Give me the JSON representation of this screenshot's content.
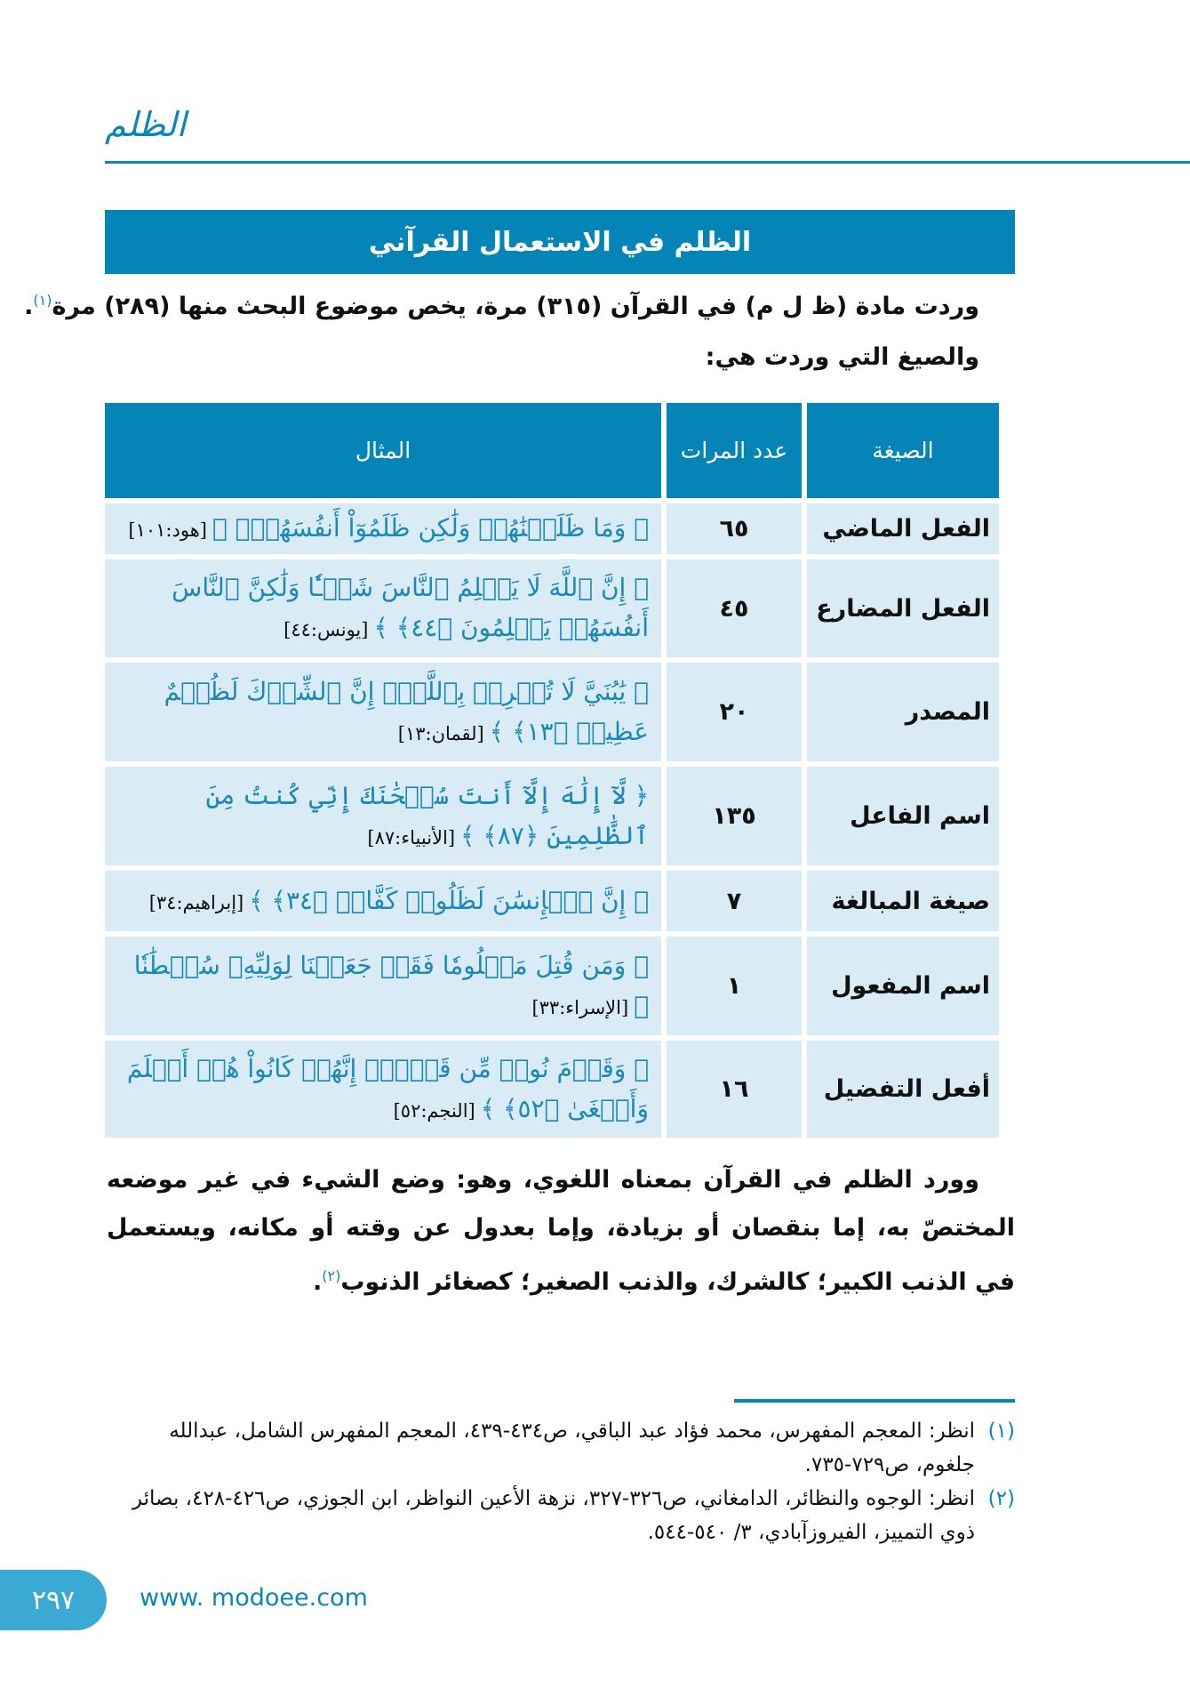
{
  "header": {
    "chapter_title": "الظلم",
    "accent_color": "#0584b8"
  },
  "section": {
    "title": "الظلم في الاستعمال القرآني"
  },
  "intro": {
    "line1": "وردت مادة (ظ ل م) في القرآن (٣١٥) مرة، يخص موضوع البحث منها (٢٨٩) مرة",
    "line1_footnote": "(١)",
    "line1_end": ".",
    "line2": "والصيغ التي وردت هي:"
  },
  "table": {
    "headers": {
      "form": "الصيغة",
      "count": "عدد المرات",
      "example": "المثال"
    },
    "rows": [
      {
        "form": "الفعل الماضي",
        "count": "٦٥",
        "verse": "﴿ وَمَا ظَلَمۡنَٰهُمۡ وَلَٰكِن ظَلَمُوٓاْ أَنفُسَهُمۡۖ ﴾",
        "ref": "[هود:١٠١]"
      },
      {
        "form": "الفعل المضارع",
        "count": "٤٥",
        "verse": "﴿ إِنَّ ٱللَّهَ لَا يَظۡلِمُ ٱلنَّاسَ شَيۡـٔٗا وَلَٰكِنَّ ٱلنَّاسَ أَنفُسَهُمۡ يَظۡلِمُونَ ﴿٤٤﴾ ﴾",
        "ref": "[يونس:٤٤]"
      },
      {
        "form": "المصدر",
        "count": "٢٠",
        "verse": "﴿ يَٰبُنَيَّ لَا تُشۡرِكۡ بِٱللَّهِۖ إِنَّ ٱلشِّرۡكَ لَظُلۡمٌ عَظِيمٞ ﴿١٣﴾ ﴾",
        "ref": "[لقمان:١٣]"
      },
      {
        "form": "اسم الفاعل",
        "count": "١٣٥",
        "verse": "﴿ لَّآ إِلَٰهَ إِلَّآ أَنتَ سُبۡحَٰنَكَ إِنِّي كُنتُ مِنَ ٱلظَّٰلِمِينَ ﴿٨٧﴾ ﴾",
        "ref": "[الأنبياء:٨٧]"
      },
      {
        "form": "صيغة المبالغة",
        "count": "٧",
        "verse": "﴿ إِنَّ ٱلۡإِنسَٰنَ لَظَلُومٞ كَفَّارٞ ﴿٣٤﴾ ﴾",
        "ref": "[إبراهيم:٣٤]"
      },
      {
        "form": "اسم المفعول",
        "count": "١",
        "verse": "﴿ وَمَن قُتِلَ مَظۡلُومٗا فَقَدۡ جَعَلۡنَا لِوَلِيِّهِۦ سُلۡطَٰنٗا ﴾",
        "ref": "[الإسراء:٣٣]"
      },
      {
        "form": "أفعل التفضيل",
        "count": "١٦",
        "verse": "﴿ وَقَوۡمَ نُوحٖ مِّن قَبۡلُۖ إِنَّهُمۡ كَانُواْ هُمۡ أَظۡلَمَ وَأَطۡغَىٰ ﴿٥٢﴾ ﴾",
        "ref": "[النجم:٥٢]"
      }
    ]
  },
  "paragraph": {
    "text": "وورد الظلم في القرآن بمعناه اللغوي، وهو: وضع الشيء في غير موضعه المختصّ به، إما بنقصان أو بزيادة، وإما بعدول عن وقته أو مكانه، ويستعمل في الذنب الكبير؛ كالشرك، والذنب الصغير؛ كصغائر الذنوب",
    "footnote": "(٢)",
    "end": "."
  },
  "footnotes": [
    {
      "num": "(١)",
      "text": "انظر: المعجم المفهرس، محمد فؤاد عبد الباقي، ص٤٣٤-٤٣٩، المعجم المفهرس الشامل، عبدالله جلغوم، ص٧٢٩-٧٣٥."
    },
    {
      "num": "(٢)",
      "text": "انظر: الوجوه والنظائر، الدامغاني، ص٣٢٦-٣٢٧، نزهة الأعين النواظر، ابن الجوزي، ص٤٢٦-٤٢٨، بصائر ذوي التمييز، الفيروزآبادي، ٣/ ٥٤٠-٥٤٤."
    }
  ],
  "footer": {
    "page_number": "٢٩٧",
    "url": "www. modoee.com"
  }
}
